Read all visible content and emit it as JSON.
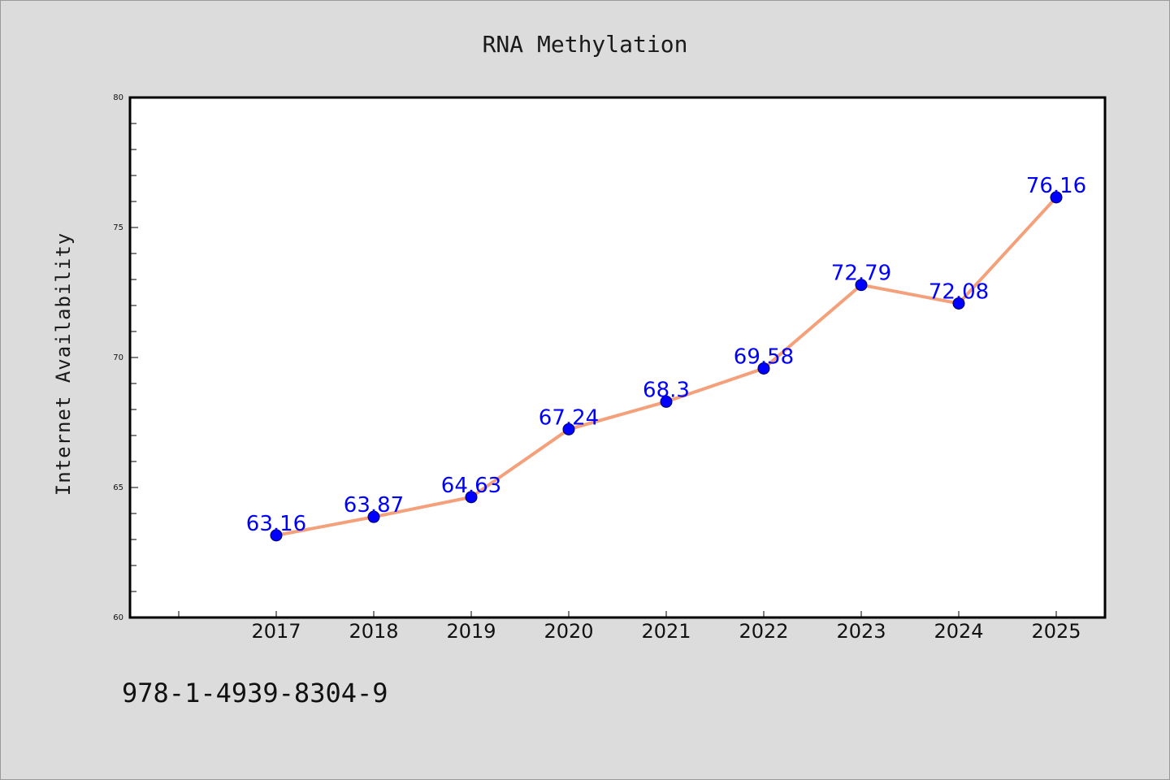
{
  "chart_data": {
    "type": "line",
    "title": "RNA Methylation",
    "xlabel": "",
    "ylabel": "Internet Availability",
    "categories": [
      "2017",
      "2018",
      "2019",
      "2020",
      "2021",
      "2022",
      "2023",
      "2024",
      "2025"
    ],
    "series": [
      {
        "values": [
          63.16,
          63.87,
          64.63,
          67.24,
          68.3,
          69.58,
          72.79,
          72.08,
          76.16
        ],
        "line_color": "#f4a07a",
        "marker_color": "#0000ff"
      }
    ],
    "data_labels": [
      "63.16",
      "63.87",
      "64.63",
      "67.24",
      "68.3",
      "69.58",
      "72.79",
      "72.08",
      "76.16"
    ],
    "ylim": [
      60,
      80
    ],
    "yticks": [
      "60",
      "65",
      "70",
      "75",
      "80"
    ],
    "grid": false,
    "legend": "none"
  },
  "footer": {
    "isbn": "978-1-4939-8304-9"
  },
  "colors": {
    "background": "#dcdcdc",
    "plot_background": "#ffffff",
    "line": "#f4a07a",
    "marker": "#0000ff",
    "label": "#0000ff"
  }
}
